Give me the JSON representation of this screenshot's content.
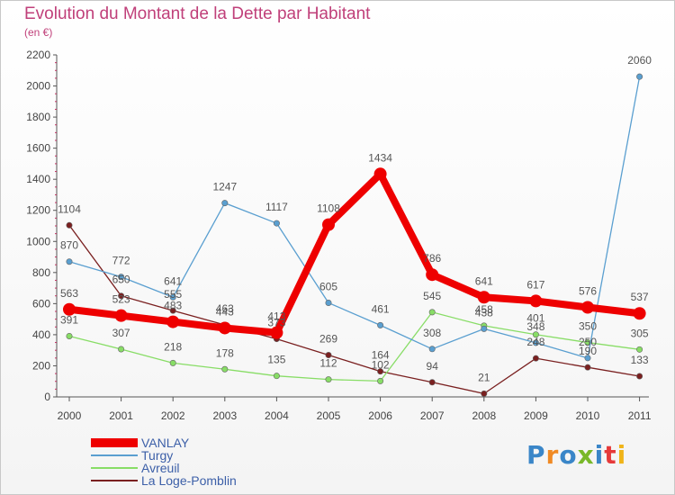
{
  "title": "Evolution du Montant de la Dette par Habitant",
  "subtitle": "(en €)",
  "logo_text": "Proxiti",
  "logo_colors": [
    "#3a86c8",
    "#f08a24",
    "#3a86c8",
    "#79b829",
    "#3a86c8",
    "#e63a3a",
    "#f0b419"
  ],
  "chart_data": {
    "type": "line",
    "title": "Evolution du Montant de la Dette par Habitant",
    "subtitle": "(en €)",
    "xlabel": "",
    "ylabel": "",
    "ylim": [
      0,
      2200
    ],
    "yticks": [
      0,
      200,
      400,
      600,
      800,
      1000,
      1200,
      1400,
      1600,
      1800,
      2000,
      2200
    ],
    "grid": false,
    "legend_position": "bottom-left",
    "categories": [
      "2000",
      "2001",
      "2002",
      "2003",
      "2004",
      "2005",
      "2006",
      "2007",
      "2008",
      "2009",
      "2010",
      "2011"
    ],
    "series": [
      {
        "name": "VANLAY",
        "color": "#ee0000",
        "values": [
          563,
          523,
          483,
          443,
          413,
          1108,
          1434,
          786,
          641,
          617,
          576,
          537
        ]
      },
      {
        "name": "Turgy",
        "color": "#5a9fd0",
        "values": [
          870,
          772,
          641,
          1247,
          1117,
          605,
          461,
          308,
          438,
          348,
          250,
          2060
        ]
      },
      {
        "name": "Avreuil",
        "color": "#88dd66",
        "values": [
          391,
          307,
          218,
          178,
          135,
          112,
          102,
          545,
          458,
          401,
          350,
          305
        ]
      },
      {
        "name": "La Loge-Pomblin",
        "color": "#7a2020",
        "values": [
          1104,
          650,
          555,
          463,
          373,
          269,
          164,
          94,
          21,
          248,
          190,
          133
        ]
      }
    ]
  }
}
